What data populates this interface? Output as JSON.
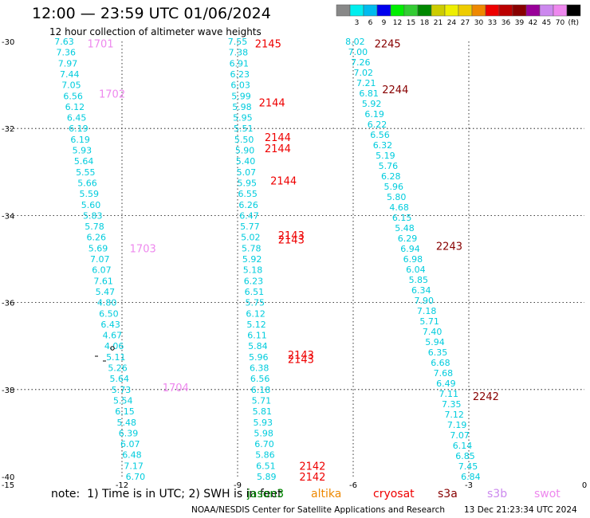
{
  "header": {
    "title": "12:00 — 23:59 UTC 01/06/2024",
    "subtitle": "12 hour collection of altimeter wave heights"
  },
  "colorbar": {
    "unit_label": "(ft)",
    "bins": [
      {
        "label": "",
        "color": "#888888"
      },
      {
        "label": "3",
        "color": "#00eeee"
      },
      {
        "label": "6",
        "color": "#00bbee"
      },
      {
        "label": "9",
        "color": "#0000ee"
      },
      {
        "label": "12",
        "color": "#00ee00"
      },
      {
        "label": "15",
        "color": "#33cc33"
      },
      {
        "label": "18",
        "color": "#008800"
      },
      {
        "label": "21",
        "color": "#cccc00"
      },
      {
        "label": "24",
        "color": "#eeee00"
      },
      {
        "label": "27",
        "color": "#eecc00"
      },
      {
        "label": "30",
        "color": "#ee8800"
      },
      {
        "label": "33",
        "color": "#ee0000"
      },
      {
        "label": "36",
        "color": "#bb0000"
      },
      {
        "label": "39",
        "color": "#880000"
      },
      {
        "label": "42",
        "color": "#990099"
      },
      {
        "label": "45",
        "color": "#cc88ee"
      },
      {
        "label": "70",
        "color": "#ee88ee"
      },
      {
        "label": "",
        "color": "#000000"
      }
    ]
  },
  "footer": {
    "note": "note:  1) Time is in UTC; 2) SWH is in feet",
    "credit": "NOAA/NESDIS Center for Satellite Applications and Research",
    "timestamp": "13 Dec 21:23:34 UTC 2024"
  },
  "legend": [
    {
      "name": "jason3",
      "color": "#008800"
    },
    {
      "name": "altika",
      "color": "#ee8800"
    },
    {
      "name": "cryosat",
      "color": "#ee0000"
    },
    {
      "name": "s3a",
      "color": "#880000"
    },
    {
      "name": "s3b",
      "color": "#cc88ee"
    },
    {
      "name": "swot",
      "color": "#ee88ee"
    }
  ],
  "chart_data": {
    "type": "scatter",
    "title": "12:00 — 23:59 UTC 01/06/2024",
    "subtitle": "12 hour collection of altimeter wave heights",
    "xlim": [
      -15,
      0
    ],
    "ylim": [
      -40,
      -30
    ],
    "x_ticks": [
      -15,
      -12,
      -9,
      -6,
      -3,
      0
    ],
    "y_ticks": [
      -30,
      -32,
      -34,
      -36,
      -38,
      -40
    ],
    "grid": true,
    "value_color": "#00ccdd",
    "tracks": [
      {
        "x_top": -13.5,
        "x_bottom": -11.65,
        "values": [
          "7.63",
          "7.36",
          "7.97",
          "7.44",
          "7.05",
          "6.56",
          "6.12",
          "6.45",
          "6.19",
          "6.19",
          "5.93",
          "5.64",
          "5.55",
          "5.66",
          "5.59",
          "5.60",
          "5.83",
          "5.78",
          "6.26",
          "5.69",
          "7.07",
          "6.07",
          "7.61",
          "5.47",
          "4.80",
          "6.50",
          "6.43",
          "4.67",
          "4.06",
          "5.11",
          "5.26",
          "5.64",
          "5.73",
          "5.54",
          "6.15",
          "5.48",
          "6.39",
          "6.07",
          "6.48",
          "7.17",
          "6.70"
        ]
      },
      {
        "x_top": -9.0,
        "x_bottom": -8.25,
        "values": [
          "7.55",
          "7.38",
          "6.91",
          "6.23",
          "6.03",
          "5.99",
          "5.98",
          "5.95",
          "5.51",
          "5.50",
          "5.90",
          "5.40",
          "5.07",
          "5.95",
          "6.55",
          "6.26",
          "6.47",
          "5.77",
          "5.02",
          "5.78",
          "5.92",
          "5.18",
          "6.23",
          "6.51",
          "5.75",
          "6.12",
          "5.12",
          "6.11",
          "5.84",
          "5.96",
          "6.38",
          "6.56",
          "6.18",
          "5.71",
          "5.81",
          "5.93",
          "5.98",
          "6.70",
          "5.86",
          "6.51",
          "5.89"
        ]
      },
      {
        "x_top": -5.95,
        "x_bottom": -2.95,
        "values": [
          "8.02",
          "7.00",
          "7.26",
          "7.02",
          "7.21",
          "6.81",
          "5.92",
          "6.19",
          "6.22",
          "6.56",
          "6.32",
          "5.19",
          "5.76",
          "6.28",
          "5.96",
          "5.80",
          "4.68",
          "6.15",
          "5.48",
          "6.29",
          "6.94",
          "6.98",
          "6.04",
          "5.85",
          "6.34",
          "7.90",
          "7.18",
          "5.71",
          "7.40",
          "5.94",
          "6.35",
          "6.68",
          "7.68",
          "6.49",
          "7.11",
          "7.35",
          "7.12",
          "7.19",
          "7.07",
          "6.14",
          "6.85",
          "7.45",
          "6.84"
        ]
      }
    ],
    "labels": [
      {
        "text": "1701",
        "x": -12.9,
        "y": -30.05,
        "color": "#ee88ee"
      },
      {
        "text": "1702",
        "x": -12.6,
        "y": -31.2,
        "color": "#ee88ee"
      },
      {
        "text": "1703",
        "x": -11.8,
        "y": -34.75,
        "color": "#ee88ee"
      },
      {
        "text": "1704",
        "x": -10.95,
        "y": -37.95,
        "color": "#ee88ee"
      },
      {
        "text": "2145",
        "x": -8.55,
        "y": -30.05,
        "color": "#ee0000"
      },
      {
        "text": "2144",
        "x": -8.45,
        "y": -31.4,
        "color": "#ee0000"
      },
      {
        "text": "2144",
        "x": -8.3,
        "y": -32.2,
        "color": "#ee0000"
      },
      {
        "text": "2144",
        "x": -8.3,
        "y": -32.45,
        "color": "#ee0000"
      },
      {
        "text": "2144",
        "x": -8.15,
        "y": -33.2,
        "color": "#ee0000"
      },
      {
        "text": "2143",
        "x": -7.95,
        "y": -34.45,
        "color": "#ee0000"
      },
      {
        "text": "2143",
        "x": -7.95,
        "y": -34.55,
        "color": "#ee0000"
      },
      {
        "text": "2143",
        "x": -7.7,
        "y": -37.2,
        "color": "#ee0000"
      },
      {
        "text": "2143",
        "x": -7.7,
        "y": -37.3,
        "color": "#ee0000"
      },
      {
        "text": "2142",
        "x": -7.4,
        "y": -39.75,
        "color": "#ee0000"
      },
      {
        "text": "2142",
        "x": -7.4,
        "y": -40.0,
        "color": "#ee0000"
      },
      {
        "text": "2245",
        "x": -5.45,
        "y": -30.05,
        "color": "#880000"
      },
      {
        "text": "2244",
        "x": -5.25,
        "y": -31.1,
        "color": "#880000"
      },
      {
        "text": "2243",
        "x": -3.85,
        "y": -34.7,
        "color": "#880000"
      },
      {
        "text": "2242",
        "x": -2.9,
        "y": -38.15,
        "color": "#880000"
      }
    ]
  }
}
